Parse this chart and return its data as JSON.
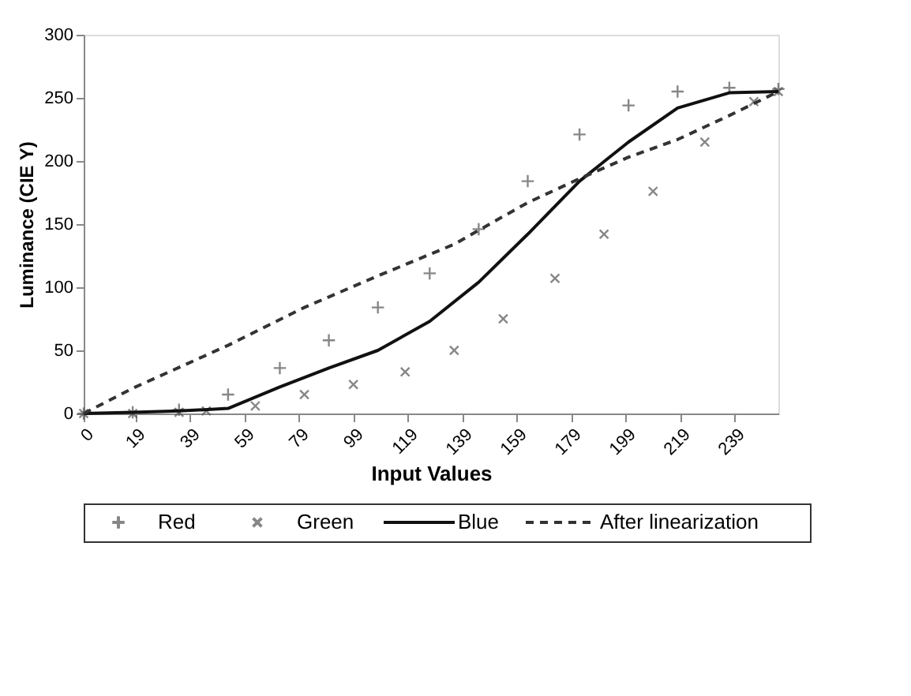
{
  "chart_data": {
    "type": "line",
    "xlabel": "Input Values",
    "ylabel": "Luminance (CIE Y)",
    "xlim": [
      0,
      255
    ],
    "xticks": [
      0,
      19,
      39,
      59,
      79,
      99,
      119,
      139,
      159,
      179,
      199,
      219,
      239
    ],
    "ylim": [
      0,
      300
    ],
    "yticks": [
      0,
      50,
      100,
      150,
      200,
      250,
      300
    ],
    "grid": false,
    "legend": "bottom",
    "series": [
      {
        "name": "Red",
        "type": "scatter",
        "marker": "cross",
        "color": "#555555",
        "x": [
          0,
          18,
          35,
          53,
          72,
          90,
          108,
          127,
          145,
          163,
          182,
          200,
          218,
          237,
          255
        ],
        "values": [
          0,
          1,
          3,
          15,
          36,
          58,
          84,
          111,
          146,
          184,
          221,
          244,
          255,
          258,
          257
        ]
      },
      {
        "name": "Green",
        "type": "scatter",
        "marker": "x",
        "color": "#555555",
        "x": [
          0,
          18,
          35,
          45,
          63,
          81,
          99,
          118,
          136,
          154,
          173,
          191,
          209,
          228,
          246,
          255
        ],
        "values": [
          0,
          0,
          1,
          2,
          6,
          15,
          23,
          33,
          50,
          75,
          107,
          142,
          176,
          215,
          247,
          255
        ]
      },
      {
        "name": "Blue",
        "line_style": "solid",
        "color": "#111111",
        "x": [
          0,
          18,
          35,
          53,
          72,
          90,
          108,
          127,
          145,
          163,
          182,
          200,
          218,
          237,
          255
        ],
        "values": [
          0,
          1,
          2,
          4,
          21,
          36,
          50,
          73,
          104,
          142,
          184,
          215,
          242,
          254,
          255
        ]
      },
      {
        "name": "After linearization",
        "line_style": "dashed",
        "color": "#333333",
        "x": [
          0,
          18,
          53,
          81,
          108,
          136,
          149,
          163,
          182,
          200,
          218,
          237,
          255
        ],
        "values": [
          0,
          20,
          54,
          84,
          109,
          134,
          150,
          167,
          186,
          203,
          217,
          236,
          255
        ]
      }
    ]
  }
}
